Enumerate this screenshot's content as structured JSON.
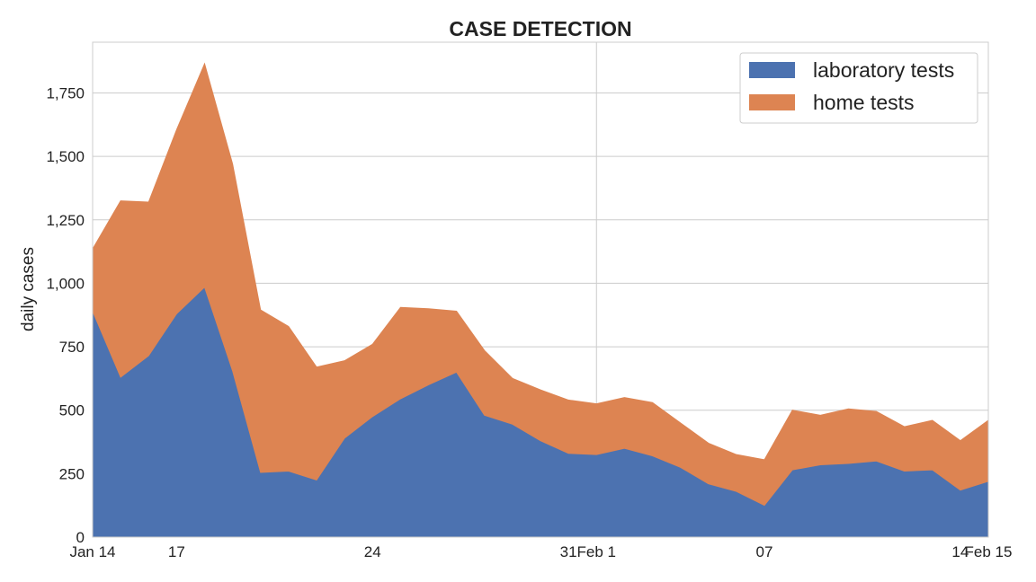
{
  "chart_data": {
    "type": "area",
    "stacked": true,
    "title": "CASE DETECTION",
    "xlabel": "",
    "ylabel": "daily cases",
    "ylim": [
      0,
      1950
    ],
    "xlim": [
      "2022-01-14",
      "2022-02-15"
    ],
    "yticks": [
      0,
      250,
      500,
      750,
      1000,
      1250,
      1500,
      1750
    ],
    "ytick_labels": [
      "0",
      "250",
      "500",
      "750",
      "1,000",
      "1,250",
      "1,500",
      "1,750"
    ],
    "xtick_labels": [
      {
        "date": "2022-01-14",
        "label": "Jan 14"
      },
      {
        "date": "2022-01-17",
        "label": "17"
      },
      {
        "date": "2022-01-24",
        "label": "24"
      },
      {
        "date": "2022-01-31",
        "label": "31"
      },
      {
        "date": "2022-02-01",
        "label": "Feb 1"
      },
      {
        "date": "2022-02-07",
        "label": "07"
      },
      {
        "date": "2022-02-14",
        "label": "14"
      },
      {
        "date": "2022-02-15",
        "label": "Feb 15"
      }
    ],
    "vertical_gridline_dates": [
      "2022-02-01"
    ],
    "grid": true,
    "legend_position": "top-right",
    "x": [
      "2022-01-14",
      "2022-01-15",
      "2022-01-16",
      "2022-01-17",
      "2022-01-18",
      "2022-01-19",
      "2022-01-20",
      "2022-01-21",
      "2022-01-22",
      "2022-01-23",
      "2022-01-24",
      "2022-01-25",
      "2022-01-26",
      "2022-01-27",
      "2022-01-28",
      "2022-01-29",
      "2022-01-30",
      "2022-01-31",
      "2022-02-01",
      "2022-02-02",
      "2022-02-03",
      "2022-02-04",
      "2022-02-05",
      "2022-02-06",
      "2022-02-07",
      "2022-02-08",
      "2022-02-09",
      "2022-02-10",
      "2022-02-11",
      "2022-02-12",
      "2022-02-13",
      "2022-02-14",
      "2022-02-15"
    ],
    "series": [
      {
        "name": "laboratory tests",
        "color": "#4c72b0",
        "values": [
          890,
          630,
          715,
          880,
          985,
          655,
          255,
          260,
          225,
          390,
          475,
          545,
          600,
          650,
          480,
          445,
          380,
          330,
          325,
          350,
          320,
          275,
          210,
          180,
          125,
          265,
          285,
          290,
          300,
          260,
          265,
          185,
          220
        ]
      },
      {
        "name": "home tests",
        "color": "#dd8452",
        "values": [
          245,
          695,
          605,
          725,
          880,
          815,
          640,
          570,
          445,
          305,
          285,
          360,
          300,
          240,
          255,
          180,
          200,
          210,
          200,
          200,
          210,
          175,
          160,
          145,
          180,
          235,
          195,
          215,
          195,
          175,
          195,
          195,
          240
        ]
      }
    ]
  }
}
